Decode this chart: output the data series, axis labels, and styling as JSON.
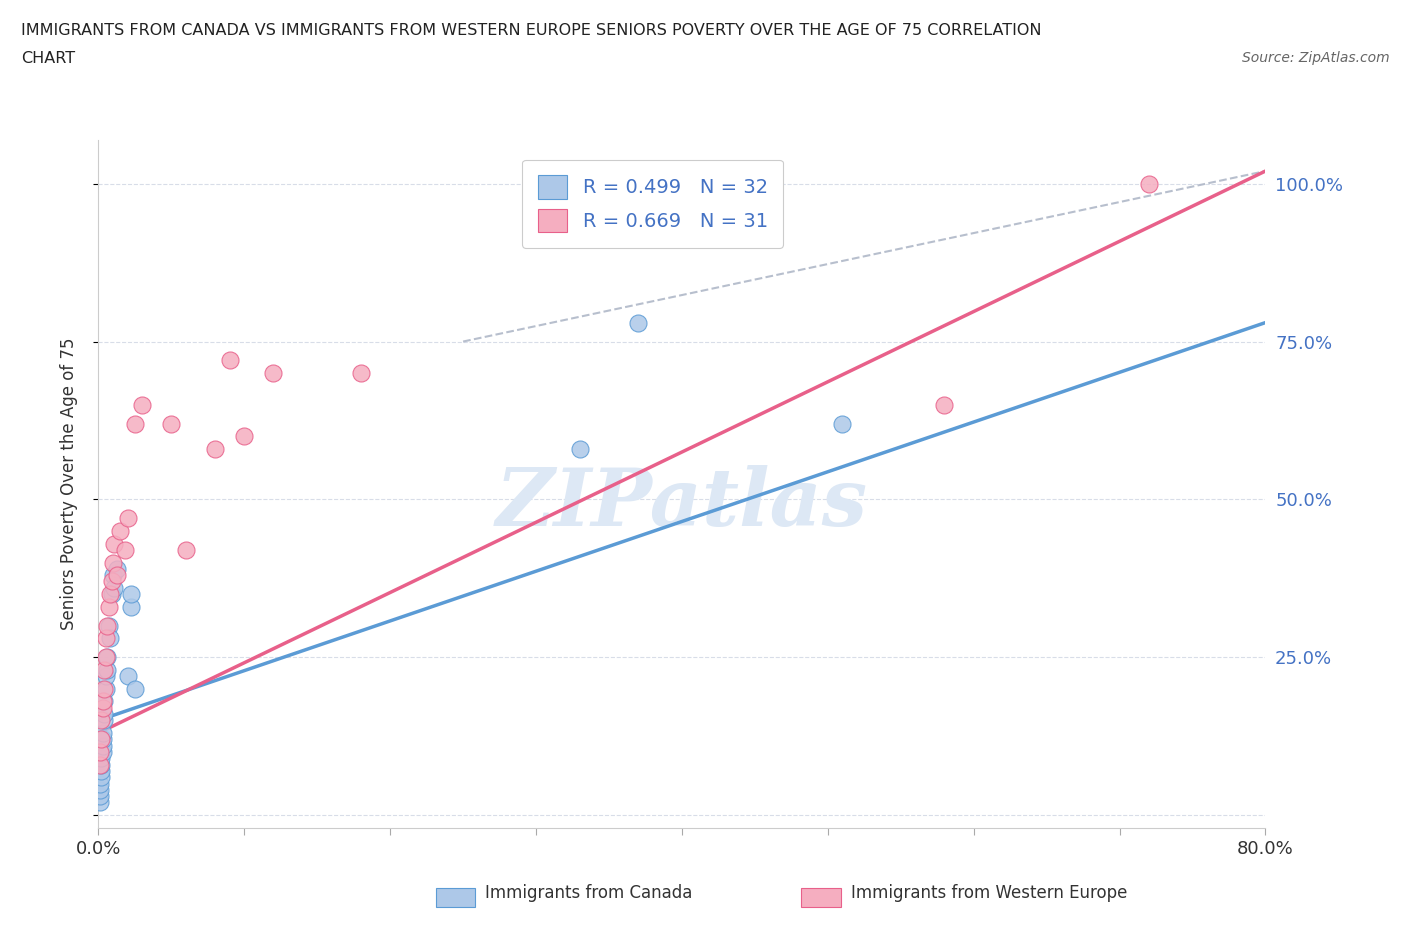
{
  "title_line1": "IMMIGRANTS FROM CANADA VS IMMIGRANTS FROM WESTERN EUROPE SENIORS POVERTY OVER THE AGE OF 75 CORRELATION",
  "title_line2": "CHART",
  "source": "Source: ZipAtlas.com",
  "ylabel": "Seniors Poverty Over the Age of 75",
  "legend_label1": "Immigrants from Canada",
  "legend_label2": "Immigrants from Western Europe",
  "legend_r1": "R = 0.499",
  "legend_n1": "N = 32",
  "legend_r2": "R = 0.669",
  "legend_n2": "N = 31",
  "color_canada": "#adc8e8",
  "color_europe": "#f5aec0",
  "color_line_canada": "#5b9bd5",
  "color_line_europe": "#e8608a",
  "color_ref_line": "#b0b8c8",
  "color_title": "#222222",
  "color_source": "#666666",
  "color_axis_right": "#4472c4",
  "color_legend_text": "#4472c4",
  "color_grid": "#d8dde8",
  "color_spine": "#cccccc",
  "background_color": "#ffffff",
  "watermark_text": "ZIPatlas",
  "watermark_color": "#dde8f5",
  "canada_x": [
    0.001,
    0.001,
    0.001,
    0.001,
    0.002,
    0.002,
    0.002,
    0.002,
    0.003,
    0.003,
    0.003,
    0.003,
    0.004,
    0.004,
    0.004,
    0.005,
    0.005,
    0.006,
    0.006,
    0.007,
    0.008,
    0.009,
    0.01,
    0.011,
    0.013,
    0.02,
    0.022,
    0.022,
    0.025,
    0.33,
    0.37,
    0.51
  ],
  "canada_y": [
    0.02,
    0.03,
    0.04,
    0.05,
    0.06,
    0.07,
    0.08,
    0.09,
    0.1,
    0.11,
    0.12,
    0.13,
    0.15,
    0.16,
    0.18,
    0.2,
    0.22,
    0.23,
    0.25,
    0.3,
    0.28,
    0.35,
    0.38,
    0.36,
    0.39,
    0.22,
    0.33,
    0.35,
    0.2,
    0.58,
    0.78,
    0.62
  ],
  "europe_x": [
    0.001,
    0.001,
    0.002,
    0.002,
    0.003,
    0.003,
    0.004,
    0.004,
    0.005,
    0.005,
    0.006,
    0.007,
    0.008,
    0.009,
    0.01,
    0.011,
    0.013,
    0.015,
    0.018,
    0.02,
    0.025,
    0.03,
    0.05,
    0.06,
    0.08,
    0.09,
    0.1,
    0.12,
    0.18,
    0.58,
    0.72
  ],
  "europe_y": [
    0.08,
    0.1,
    0.12,
    0.15,
    0.17,
    0.18,
    0.2,
    0.23,
    0.25,
    0.28,
    0.3,
    0.33,
    0.35,
    0.37,
    0.4,
    0.43,
    0.38,
    0.45,
    0.42,
    0.47,
    0.62,
    0.65,
    0.62,
    0.42,
    0.58,
    0.72,
    0.6,
    0.7,
    0.7,
    0.65,
    1.0
  ],
  "xlim": [
    0.0,
    0.8
  ],
  "ylim": [
    -0.02,
    1.07
  ],
  "xticks": [
    0.0,
    0.1,
    0.2,
    0.3,
    0.4,
    0.5,
    0.6,
    0.7,
    0.8
  ],
  "xtick_labels": [
    "0.0%",
    "",
    "",
    "",
    "",
    "",
    "",
    "",
    "80.0%"
  ],
  "yticks": [
    0.0,
    0.25,
    0.5,
    0.75,
    1.0
  ],
  "ytick_labels_right": [
    "",
    "25.0%",
    "50.0%",
    "75.0%",
    "100.0%"
  ],
  "line_canada_x0": 0.0,
  "line_canada_y0": 0.15,
  "line_canada_x1": 0.8,
  "line_canada_y1": 0.78,
  "line_europe_x0": 0.0,
  "line_europe_y0": 0.13,
  "line_europe_x1": 0.8,
  "line_europe_y1": 1.02,
  "ref_line_x0": 0.25,
  "ref_line_y0": 0.75,
  "ref_line_x1": 0.8,
  "ref_line_y1": 1.02
}
